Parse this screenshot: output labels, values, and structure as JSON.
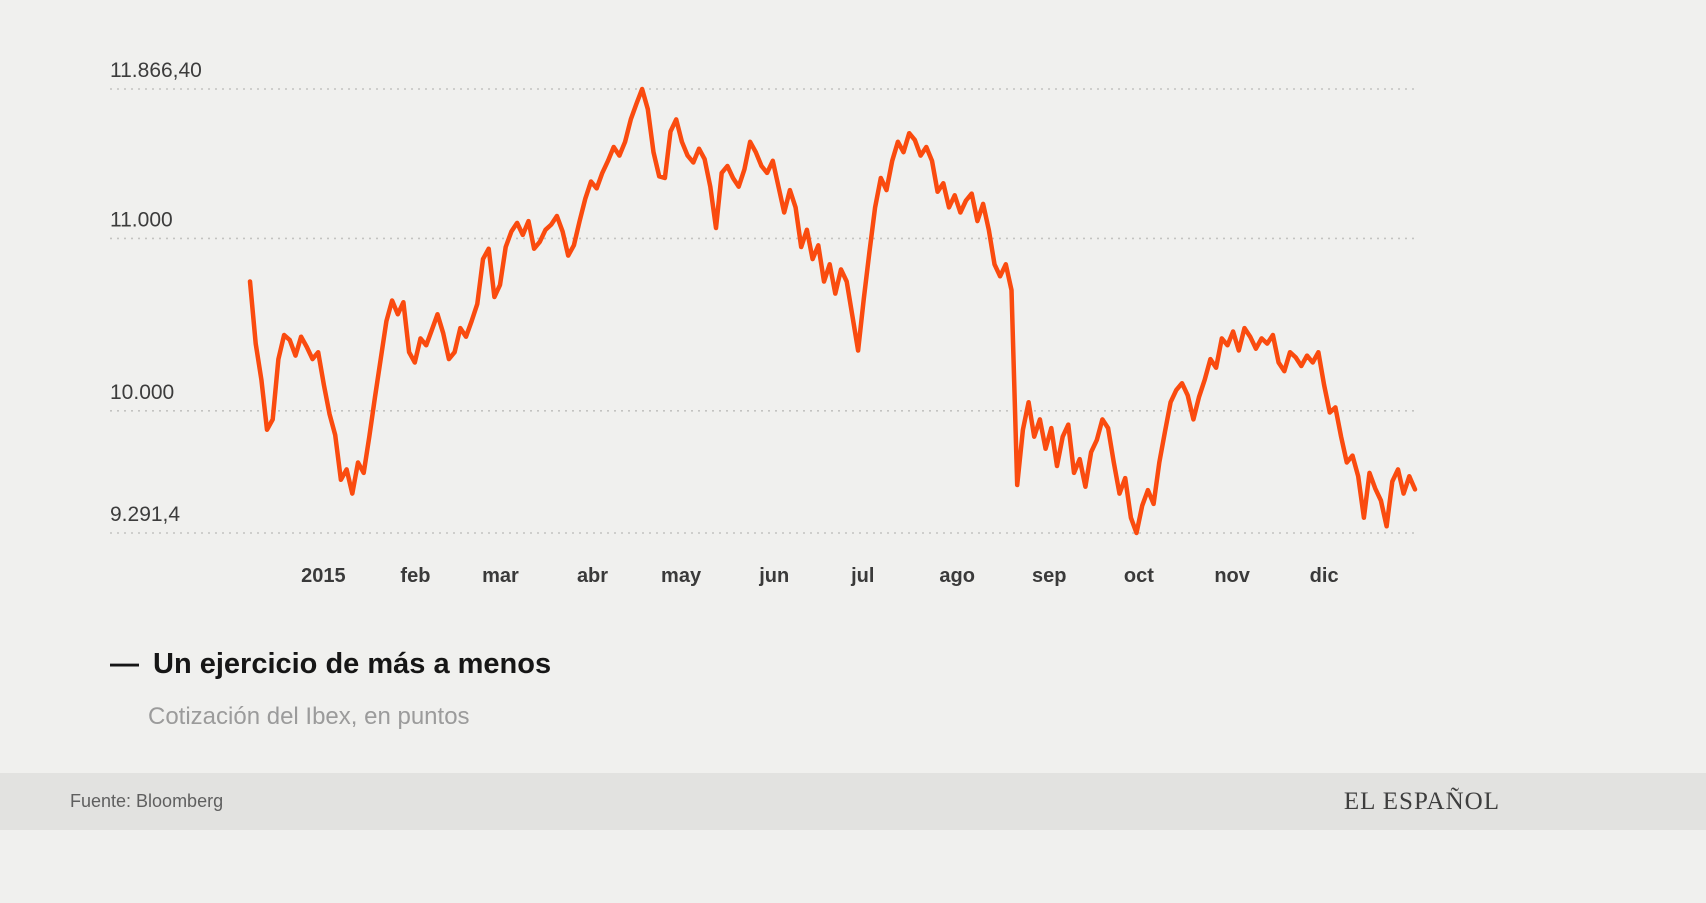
{
  "page": {
    "background": "#f0f0ee",
    "footer_background": "#e2e2e0"
  },
  "legend": {
    "dash": "—",
    "title": "Un ejercicio de más a menos",
    "subtitle": "Cotización del Ibex, en puntos"
  },
  "footer": {
    "source": "Fuente: Bloomberg",
    "brand": "EL ESPAÑOL"
  },
  "chart_data": {
    "type": "line",
    "title": "Un ejercicio de más a menos",
    "subtitle": "Cotización del Ibex, en puntos",
    "source": "Bloomberg",
    "ylabel": "Puntos",
    "ylim": [
      9291.4,
      11866.4
    ],
    "grid": "dotted-horizontal",
    "line_color": "#fa4b0f",
    "y_ticks": [
      {
        "label": "11.866,40",
        "value": 11866.4
      },
      {
        "label": "11.000",
        "value": 11000
      },
      {
        "label": "10.000",
        "value": 10000
      },
      {
        "label": "9.291,4",
        "value": 9291.4
      }
    ],
    "x_ticks": [
      {
        "label": "2015",
        "pos": 0.063
      },
      {
        "label": "feb",
        "pos": 0.142
      },
      {
        "label": "mar",
        "pos": 0.215
      },
      {
        "label": "abr",
        "pos": 0.294
      },
      {
        "label": "may",
        "pos": 0.37
      },
      {
        "label": "jun",
        "pos": 0.45
      },
      {
        "label": "jul",
        "pos": 0.526
      },
      {
        "label": "ago",
        "pos": 0.607
      },
      {
        "label": "sep",
        "pos": 0.686
      },
      {
        "label": "oct",
        "pos": 0.763
      },
      {
        "label": "nov",
        "pos": 0.843
      },
      {
        "label": "dic",
        "pos": 0.922
      }
    ],
    "series": [
      {
        "name": "Ibex",
        "color": "#fa4b0f",
        "values": [
          10750,
          10390,
          10180,
          9890,
          9950,
          10300,
          10440,
          10410,
          10320,
          10430,
          10370,
          10300,
          10340,
          10150,
          9980,
          9860,
          9600,
          9660,
          9520,
          9700,
          9640,
          9850,
          10080,
          10300,
          10520,
          10640,
          10560,
          10630,
          10340,
          10280,
          10420,
          10380,
          10470,
          10560,
          10450,
          10300,
          10340,
          10480,
          10430,
          10520,
          10620,
          10880,
          10940,
          10660,
          10730,
          10950,
          11040,
          11090,
          11020,
          11100,
          10940,
          10980,
          11050,
          11080,
          11130,
          11040,
          10900,
          10960,
          11100,
          11230,
          11330,
          11290,
          11380,
          11450,
          11530,
          11480,
          11560,
          11690,
          11780,
          11866.4,
          11750,
          11500,
          11360,
          11350,
          11620,
          11690,
          11560,
          11480,
          11440,
          11520,
          11460,
          11300,
          11060,
          11380,
          11420,
          11350,
          11300,
          11400,
          11560,
          11500,
          11420,
          11380,
          11450,
          11300,
          11150,
          11280,
          11180,
          10950,
          11050,
          10880,
          10960,
          10750,
          10850,
          10680,
          10820,
          10750,
          10550,
          10350,
          10650,
          10920,
          11180,
          11350,
          11280,
          11450,
          11560,
          11500,
          11610,
          11570,
          11480,
          11530,
          11450,
          11270,
          11320,
          11180,
          11250,
          11150,
          11220,
          11260,
          11100,
          11200,
          11050,
          10850,
          10780,
          10850,
          10700,
          9570,
          9890,
          10050,
          9850,
          9950,
          9780,
          9900,
          9680,
          9850,
          9920,
          9640,
          9720,
          9560,
          9760,
          9830,
          9950,
          9900,
          9700,
          9520,
          9610,
          9380,
          9291.4,
          9450,
          9540,
          9460,
          9700,
          9880,
          10050,
          10120,
          10160,
          10090,
          9950,
          10080,
          10180,
          10300,
          10250,
          10420,
          10380,
          10460,
          10350,
          10480,
          10430,
          10360,
          10420,
          10390,
          10440,
          10280,
          10230,
          10340,
          10310,
          10260,
          10320,
          10280,
          10340,
          10150,
          9990,
          10020,
          9850,
          9700,
          9740,
          9620,
          9380,
          9640,
          9550,
          9480,
          9330,
          9590,
          9660,
          9520,
          9620,
          9544
        ]
      }
    ]
  }
}
